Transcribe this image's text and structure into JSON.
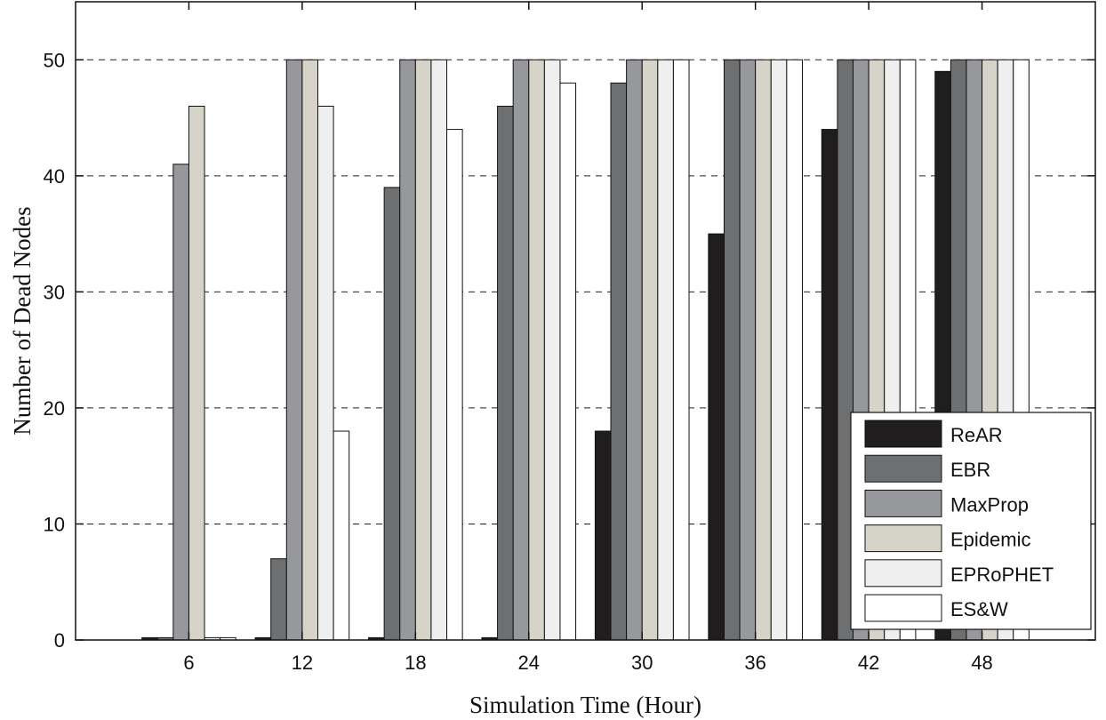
{
  "chart_data": {
    "type": "bar",
    "title": "",
    "xlabel": "Simulation Time (Hour)",
    "ylabel": "Number of Dead Nodes",
    "categories": [
      "6",
      "12",
      "18",
      "24",
      "30",
      "36",
      "42",
      "48"
    ],
    "ylim": [
      0,
      55
    ],
    "yticks": [
      "0",
      "10",
      "20",
      "30",
      "40",
      "50"
    ],
    "grid": "horizontal dashed",
    "legend_position": "bottom-right",
    "series": [
      {
        "name": "ReAR",
        "color": "#1f1d1e",
        "values": [
          0.2,
          0.2,
          0.2,
          0.2,
          18,
          35,
          44,
          49
        ]
      },
      {
        "name": "EBR",
        "color": "#6e6f71",
        "values": [
          0.2,
          7,
          39,
          46,
          48,
          50,
          50,
          50
        ]
      },
      {
        "name": "MaxProp",
        "color": "#97989b",
        "values": [
          41,
          50,
          50,
          50,
          50,
          50,
          50,
          50
        ]
      },
      {
        "name": "Epidemic",
        "color": "#d6d3c9",
        "values": [
          46,
          50,
          50,
          50,
          50,
          50,
          50,
          50
        ]
      },
      {
        "name": "EPRoPHET",
        "color": "#efefef",
        "values": [
          0.2,
          46,
          50,
          50,
          50,
          50,
          50,
          50
        ]
      },
      {
        "name": "ES&W",
        "color": "#ffffff",
        "values": [
          0.2,
          18,
          44,
          48,
          50,
          50,
          50,
          50
        ]
      }
    ]
  }
}
